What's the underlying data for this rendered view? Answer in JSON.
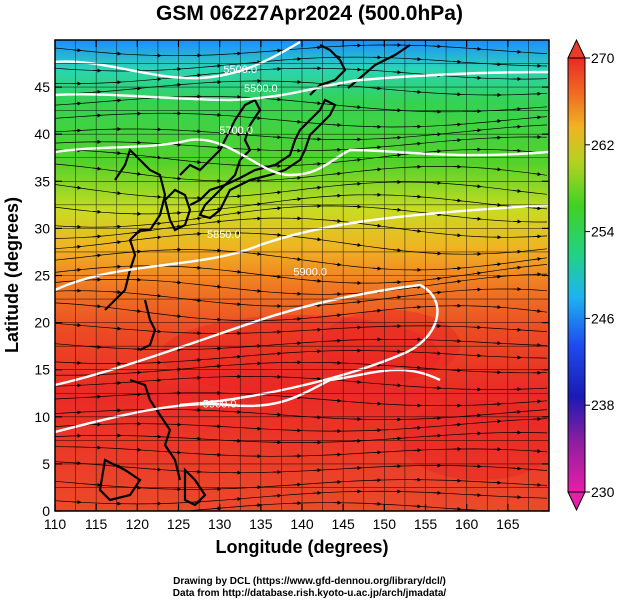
{
  "title": "GSM 06Z27Apr2024 (500.0hPa)",
  "x_axis": {
    "label": "Longitude (degrees)",
    "ticks": [
      "110",
      "115",
      "120",
      "125",
      "130",
      "135",
      "140",
      "145",
      "150",
      "155",
      "160",
      "165"
    ],
    "range": [
      110,
      170
    ]
  },
  "y_axis": {
    "label": "Latitude  (degrees)",
    "ticks": [
      "0",
      "5",
      "10",
      "15",
      "20",
      "25",
      "30",
      "35",
      "40",
      "45"
    ],
    "range": [
      0,
      50
    ]
  },
  "colorbar": {
    "ticks": [
      "230",
      "238",
      "246",
      "254",
      "262",
      "270"
    ],
    "range": [
      230,
      270
    ]
  },
  "contour_labels": [
    {
      "text": "5500.0",
      "lon": 132.5,
      "lat": 46.5
    },
    {
      "text": "5500.0",
      "lon": 135,
      "lat": 44.5
    },
    {
      "text": "5700.0",
      "lon": 132,
      "lat": 40
    },
    {
      "text": "5850.0",
      "lon": 130.5,
      "lat": 29
    },
    {
      "text": "5900.0",
      "lon": 141,
      "lat": 25
    },
    {
      "text": "5900.0",
      "lon": 130,
      "lat": 11
    }
  ],
  "credits": {
    "line1": "Drawing by DCL (https://www.gfd-dennou.org/library/dcl/)",
    "line2": "Data from http://database.rish.kyoto-u.ac.jp/arch/jmadata/"
  }
}
